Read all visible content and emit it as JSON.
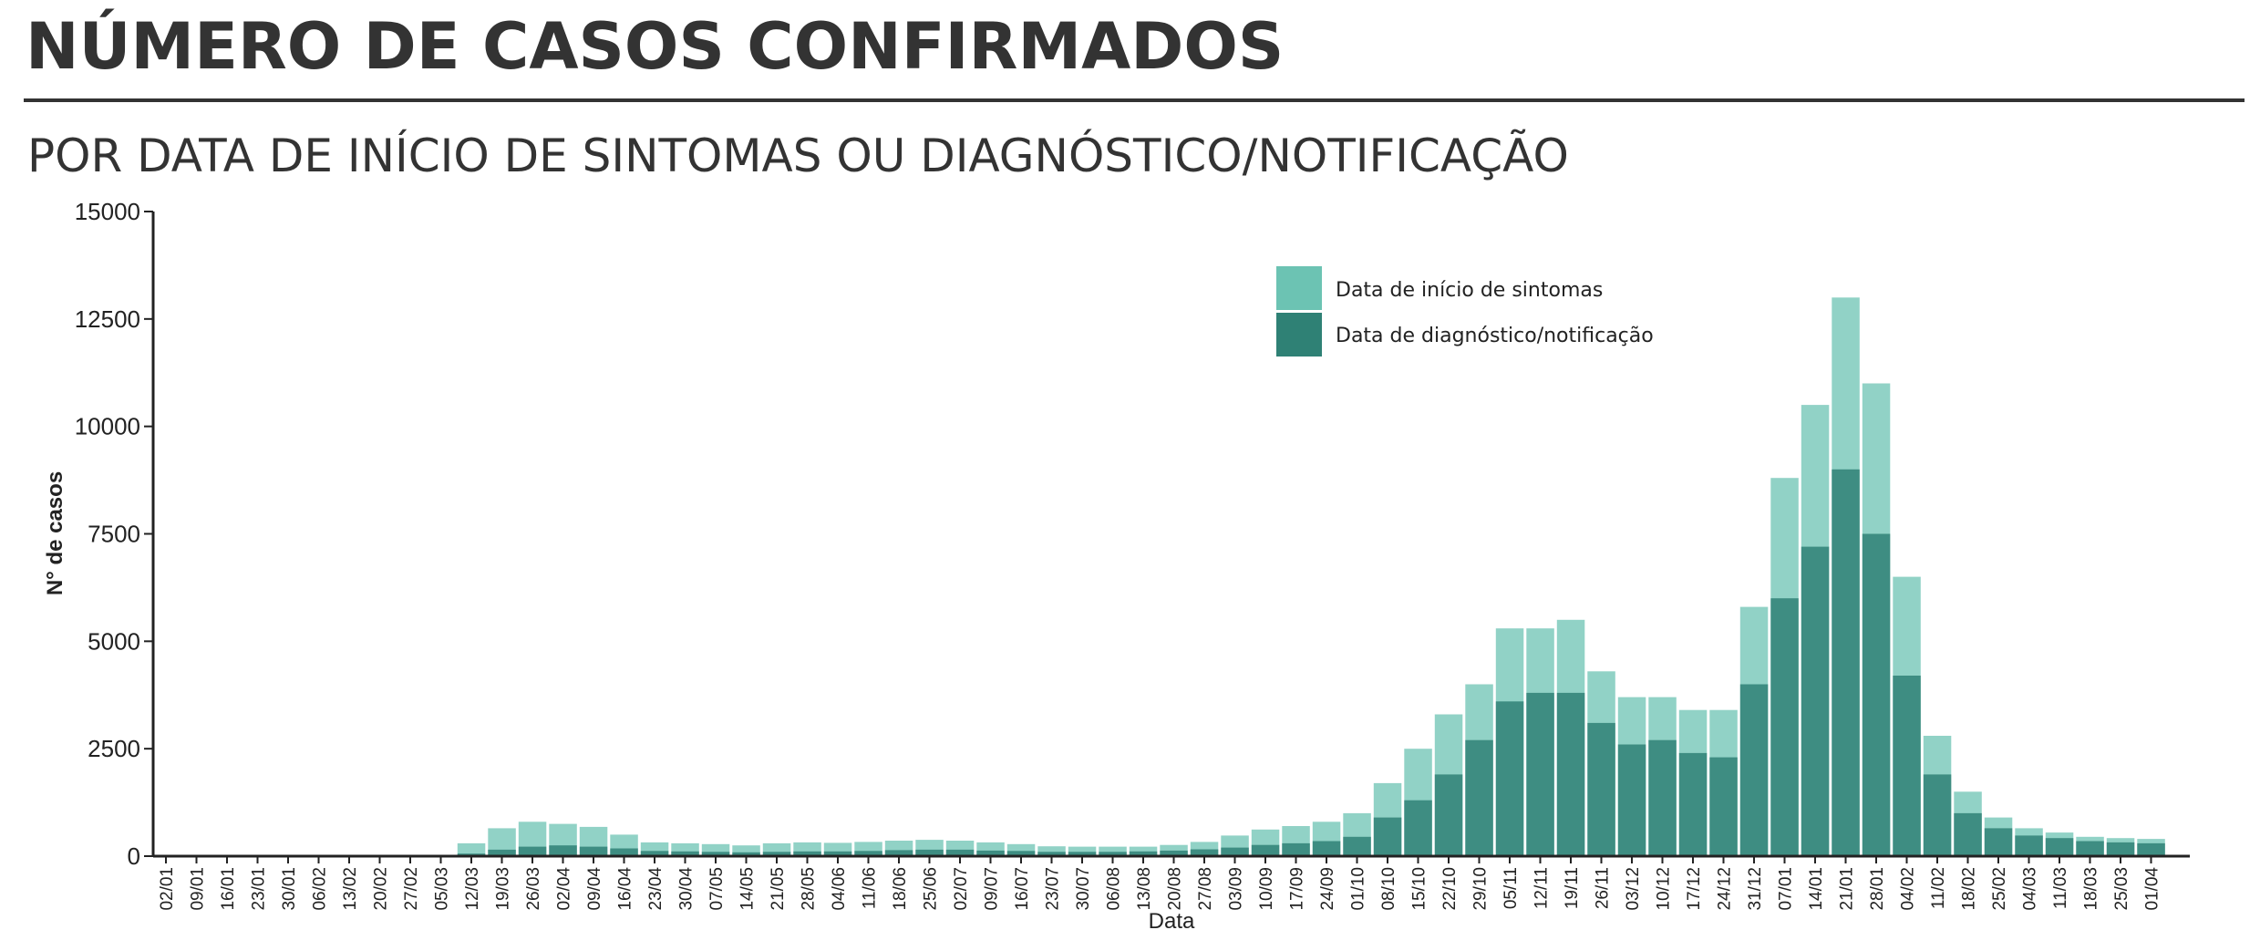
{
  "header": {
    "title": "NÚMERO DE CASOS CONFIRMADOS",
    "subtitle": "POR DATA DE INÍCIO DE SINTOMAS OU DIAGNÓSTICO/NOTIFICAÇÃO"
  },
  "colors": {
    "symptom_onset": "#6cc3b3",
    "diagnosis": "#2f8175",
    "text": "#333333"
  },
  "chart_data": {
    "type": "bar",
    "xlabel": "Data",
    "ylabel": "N° de casos",
    "ylim": [
      0,
      15000
    ],
    "y_ticks": [
      0,
      2500,
      5000,
      7500,
      10000,
      12500,
      15000
    ],
    "x_tick_labels": [
      "02/01",
      "09/01",
      "16/01",
      "23/01",
      "30/01",
      "06/02",
      "13/02",
      "20/02",
      "27/02",
      "05/03",
      "12/03",
      "19/03",
      "26/03",
      "02/04",
      "09/04",
      "16/04",
      "23/04",
      "30/04",
      "07/05",
      "14/05",
      "21/05",
      "28/05",
      "04/06",
      "11/06",
      "18/06",
      "25/06",
      "02/07",
      "09/07",
      "16/07",
      "23/07",
      "30/07",
      "06/08",
      "13/08",
      "20/08",
      "27/08",
      "03/09",
      "10/09",
      "17/09",
      "24/09",
      "01/10",
      "08/10",
      "15/10",
      "22/10",
      "29/10",
      "05/11",
      "12/11",
      "19/11",
      "26/11",
      "03/12",
      "10/12",
      "17/12",
      "24/12",
      "31/12",
      "07/01",
      "14/01",
      "21/01",
      "28/01",
      "04/02",
      "11/02",
      "18/02",
      "25/02",
      "04/03",
      "11/03",
      "18/03",
      "25/03",
      "01/04"
    ],
    "grid": false,
    "legend_position": "upper-right of center",
    "barmode": "overlay",
    "resolution": "weekly averages of daily bars (one value per tick week)",
    "series": [
      {
        "name": "Data de início de sintomas",
        "values": [
          0,
          0,
          0,
          0,
          0,
          0,
          0,
          0,
          0,
          10,
          300,
          650,
          800,
          750,
          680,
          500,
          320,
          300,
          280,
          250,
          300,
          320,
          310,
          330,
          360,
          380,
          360,
          320,
          280,
          230,
          220,
          220,
          220,
          260,
          330,
          480,
          620,
          700,
          800,
          1000,
          1700,
          2500,
          3300,
          4000,
          5300,
          5300,
          5500,
          4300,
          3700,
          3700,
          3400,
          3400,
          5800,
          8800,
          10500,
          13000,
          11000,
          6500,
          2800,
          1500,
          900,
          650,
          550,
          450,
          420,
          400
        ]
      },
      {
        "name": "Data de diagnóstico/notificação",
        "values": [
          0,
          0,
          0,
          0,
          0,
          0,
          0,
          0,
          0,
          0,
          60,
          150,
          220,
          250,
          220,
          180,
          120,
          110,
          100,
          90,
          100,
          110,
          110,
          120,
          140,
          150,
          150,
          130,
          120,
          100,
          100,
          100,
          110,
          130,
          160,
          200,
          260,
          300,
          350,
          450,
          900,
          1300,
          1900,
          2700,
          3600,
          3800,
          3800,
          3100,
          2600,
          2700,
          2400,
          2300,
          4000,
          6000,
          7200,
          9000,
          7500,
          4200,
          1900,
          1000,
          650,
          480,
          420,
          350,
          320,
          300
        ]
      }
    ]
  }
}
